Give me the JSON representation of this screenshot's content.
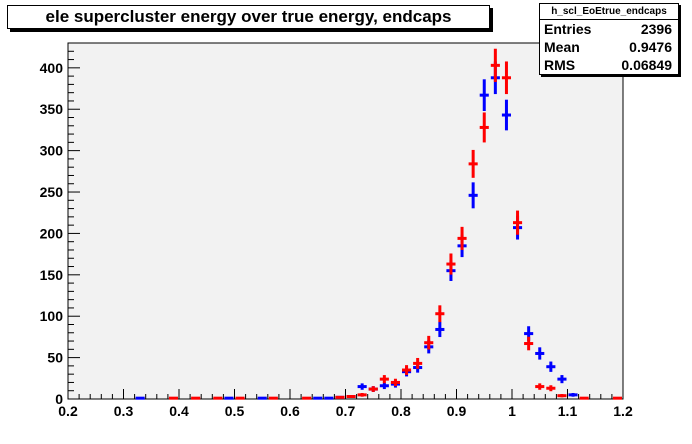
{
  "chart_data": {
    "type": "scatter",
    "title": "ele supercluster energy over true energy, endcaps",
    "xlim": [
      0.2,
      1.2
    ],
    "ylim": [
      0,
      430
    ],
    "x_ticks": [
      "0.2",
      "0.3",
      "0.4",
      "0.5",
      "0.6",
      "0.7",
      "0.8",
      "0.9",
      "1",
      "1.1",
      "1.2"
    ],
    "y_ticks": [
      "0",
      "50",
      "100",
      "150",
      "200",
      "250",
      "300",
      "350",
      "400"
    ],
    "grid": false,
    "bin_width": 0.02,
    "stats": {
      "name": "h_scl_EoEtrue_endcaps",
      "rows": [
        {
          "label": "Entries",
          "value": "2396"
        },
        {
          "label": "Mean",
          "value": "0.9476"
        },
        {
          "label": "RMS",
          "value": "0.06849"
        }
      ]
    },
    "series": [
      {
        "color": "#0000ff",
        "x": [
          0.33,
          0.49,
          0.55,
          0.65,
          0.67,
          0.69,
          0.71,
          0.73,
          0.75,
          0.77,
          0.79,
          0.81,
          0.83,
          0.85,
          0.87,
          0.89,
          0.91,
          0.93,
          0.95,
          0.97,
          0.99,
          1.01,
          1.03,
          1.05,
          1.07,
          1.09,
          1.11
        ],
        "y": [
          1,
          1,
          1,
          1,
          1,
          2,
          3,
          15,
          12,
          16,
          18,
          33,
          38,
          63,
          84,
          155,
          185,
          246,
          367,
          388,
          343,
          207,
          79,
          55,
          39,
          24,
          5
        ]
      },
      {
        "color": "#ff0000",
        "x": [
          0.39,
          0.43,
          0.47,
          0.51,
          0.57,
          0.63,
          0.69,
          0.71,
          0.73,
          0.75,
          0.77,
          0.79,
          0.81,
          0.83,
          0.85,
          0.87,
          0.89,
          0.91,
          0.93,
          0.95,
          0.97,
          0.99,
          1.01,
          1.03,
          1.05,
          1.07,
          1.09,
          1.13,
          1.19
        ],
        "y": [
          1,
          1,
          1,
          1,
          1,
          1,
          2,
          3,
          5,
          12,
          24,
          20,
          35,
          43,
          68,
          103,
          163,
          194,
          284,
          328,
          403,
          388,
          213,
          67,
          15,
          13,
          4,
          1,
          1
        ]
      }
    ]
  }
}
